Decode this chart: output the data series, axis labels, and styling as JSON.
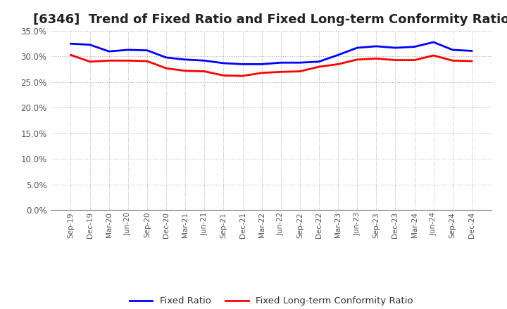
{
  "title": "[6346]  Trend of Fixed Ratio and Fixed Long-term Conformity Ratio",
  "x_labels": [
    "Sep-19",
    "Dec-19",
    "Mar-20",
    "Jun-20",
    "Sep-20",
    "Dec-20",
    "Mar-21",
    "Jun-21",
    "Sep-21",
    "Dec-21",
    "Mar-22",
    "Jun-22",
    "Sep-22",
    "Dec-22",
    "Mar-23",
    "Jun-23",
    "Sep-23",
    "Dec-23",
    "Mar-24",
    "Jun-24",
    "Sep-24",
    "Dec-24"
  ],
  "fixed_ratio": [
    32.5,
    32.3,
    31.0,
    31.3,
    31.2,
    29.8,
    29.4,
    29.2,
    28.7,
    28.5,
    28.5,
    28.8,
    28.8,
    29.0,
    30.3,
    31.7,
    32.0,
    31.7,
    31.9,
    32.8,
    31.3,
    31.1
  ],
  "fixed_lterm": [
    30.3,
    29.0,
    29.2,
    29.2,
    29.1,
    27.7,
    27.2,
    27.1,
    26.3,
    26.2,
    26.8,
    27.0,
    27.1,
    28.0,
    28.5,
    29.4,
    29.6,
    29.3,
    29.3,
    30.2,
    29.2,
    29.1
  ],
  "fixed_ratio_color": "#0000FF",
  "fixed_lterm_color": "#FF0000",
  "ylim": [
    0,
    35
  ],
  "yticks": [
    0,
    5,
    10,
    15,
    20,
    25,
    30,
    35
  ],
  "background_color": "#FFFFFF",
  "grid_color": "#999999",
  "title_fontsize": 13,
  "tick_color": "#555555",
  "legend_labels": [
    "Fixed Ratio",
    "Fixed Long-term Conformity Ratio"
  ]
}
